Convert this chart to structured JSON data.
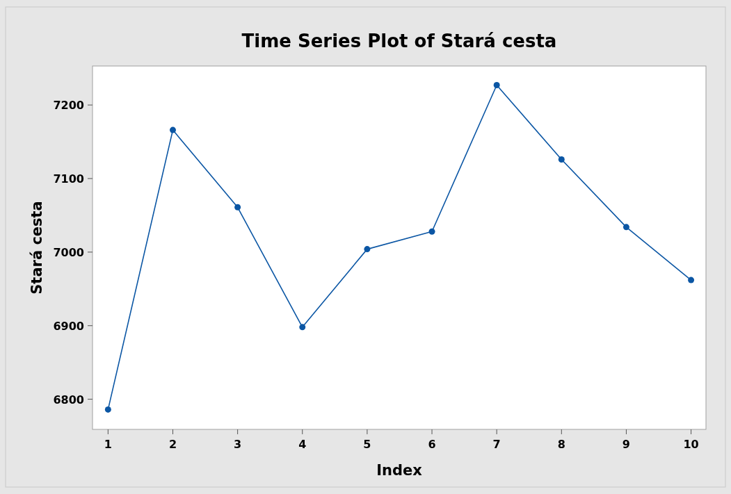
{
  "chart_data": {
    "type": "line",
    "title": "Time Series Plot of Stará cesta",
    "xlabel": "Index",
    "ylabel": "Stará cesta",
    "x": [
      1,
      2,
      3,
      4,
      5,
      6,
      7,
      8,
      9,
      10
    ],
    "series": [
      {
        "color": "#0b56a4",
        "values": [
          6786,
          7166,
          7061,
          6898,
          7004,
          7028,
          7227,
          7126,
          7034,
          6962
        ]
      }
    ],
    "xlim": [
      0.76,
      10.23
    ],
    "xticks": [
      1,
      2,
      3,
      4,
      5,
      6,
      7,
      8,
      9,
      10
    ],
    "ylim": [
      6759,
      7253
    ],
    "yticks": [
      6800,
      6900,
      7000,
      7100,
      7200
    ],
    "grid": false,
    "marker": "circle",
    "line_style": "solid"
  }
}
